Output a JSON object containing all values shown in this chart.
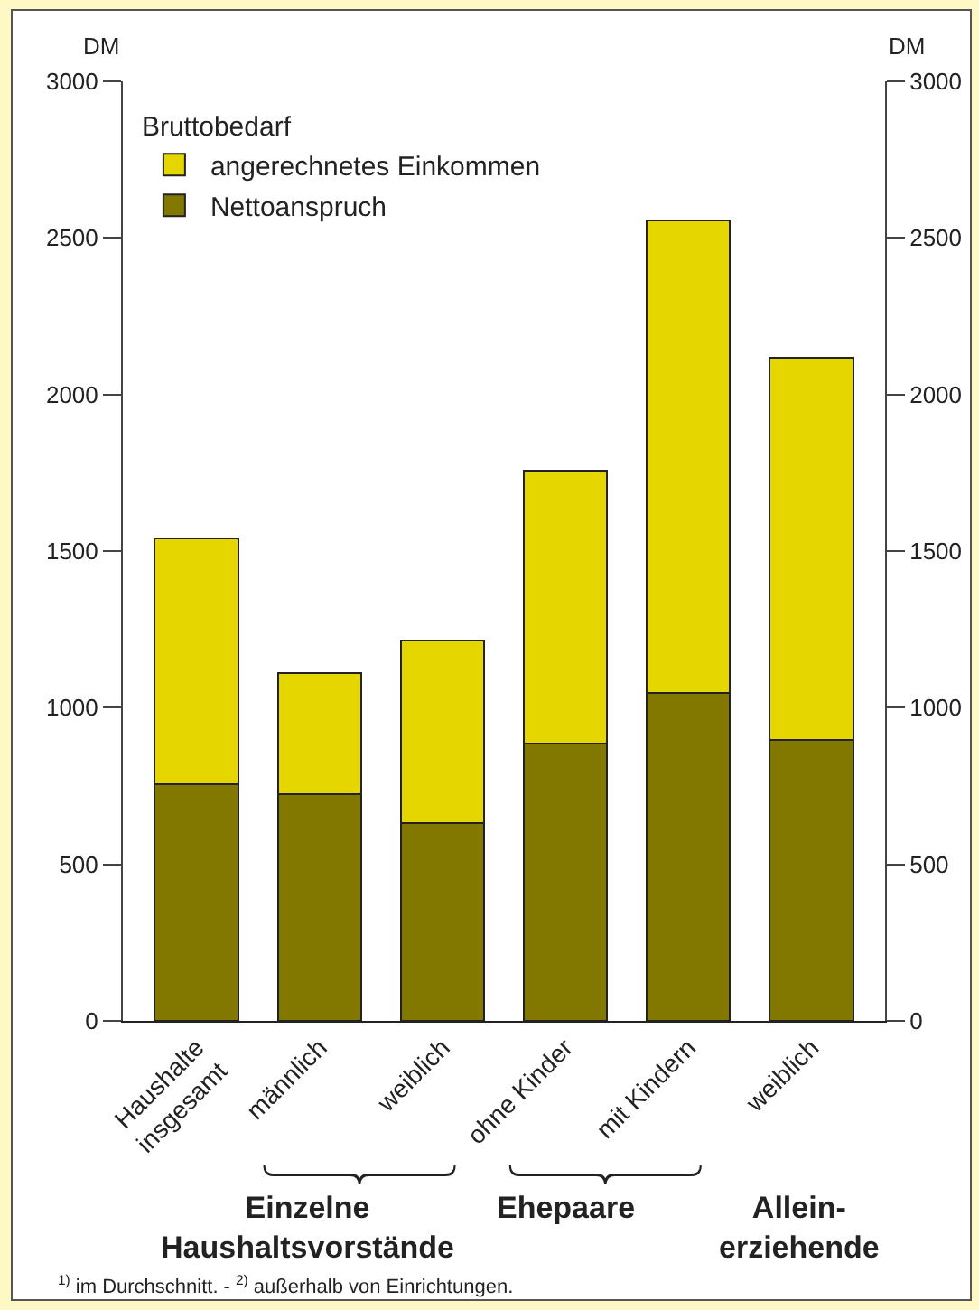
{
  "chart_data": {
    "type": "bar",
    "stacked": true,
    "categories": [
      "Haushalte\ninsgesamt",
      "männlich",
      "weiblich",
      "ohne Kinder",
      "mit Kindern",
      "weiblich"
    ],
    "series": [
      {
        "name": "Nettoanspruch",
        "color": "#827800",
        "values": [
          757,
          723,
          633,
          886,
          1048,
          898
        ]
      },
      {
        "name": "angerechnetes Einkommen",
        "color": "#e6d600",
        "values": [
          783,
          387,
          582,
          870,
          1508,
          1218
        ]
      }
    ],
    "legend_title": "Bruttobedarf",
    "legend": "top left",
    "ylabel": "DM",
    "y2label": "DM",
    "ylim": [
      0,
      3000
    ],
    "yticks": [
      0,
      500,
      1000,
      1500,
      2000,
      2500,
      3000
    ],
    "y2lim": [
      0,
      3000
    ],
    "y2ticks": [
      0,
      500,
      1000,
      1500,
      2000,
      2500,
      3000
    ],
    "grid": false,
    "annotations": [
      "Einzelne\nHaushaltsvorstände",
      "Ehepaare",
      "Allein-\nerziehende",
      "$^{1)}$ im Durchschnitt. - $^{2)}$ außerhalb von Einrichtungen."
    ]
  }
}
